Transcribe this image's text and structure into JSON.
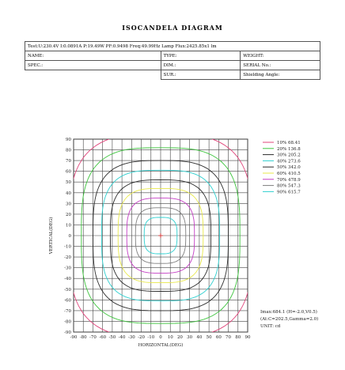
{
  "title": "ISOCANDELA DIAGRAM",
  "info_table": {
    "test_line": "Test:U:230.4V I:0.0891A P:19.49W PF:0.9498 Freq:49.99Hz  Lamp Flux:2425.85x1 lm",
    "name_label": "NAME:",
    "type_label": "TYPE:",
    "weight_label": "WEIGHT:",
    "spec_label": "SPEC.:",
    "dim_label": "DIM.:",
    "serial_label": "SERIAL No.:",
    "sur_label": "SUR.:",
    "shielding_label": "Shielding Angle:"
  },
  "chart_data": {
    "type": "isocandela",
    "xlabel": "HORIZONTAL(DEG)",
    "ylabel": "VERTICAL(DEG)",
    "xlim": [
      -90,
      90
    ],
    "ylim": [
      -90,
      90
    ],
    "x_ticks": [
      -90,
      -80,
      -70,
      -60,
      -50,
      -40,
      -30,
      -20,
      -10,
      0,
      10,
      20,
      30,
      40,
      50,
      60,
      70,
      80,
      90
    ],
    "y_ticks": [
      90,
      80,
      70,
      60,
      50,
      40,
      30,
      20,
      10,
      0,
      -10,
      -20,
      -30,
      -40,
      -50,
      -60,
      -70,
      -80,
      -90
    ],
    "grid": true,
    "legend_position": "right",
    "series": [
      {
        "name": "10% 68.41",
        "percent": 10,
        "value": 68.41,
        "color": "#e0457b",
        "half_width": 95
      },
      {
        "name": "20% 136.8",
        "percent": 20,
        "value": 136.8,
        "color": "#3ec43e",
        "half_width": 82
      },
      {
        "name": "30% 205.2",
        "percent": 30,
        "value": 205.2,
        "color": "#2a2a2a",
        "half_width": 70
      },
      {
        "name": "40% 273.6",
        "percent": 40,
        "value": 273.6,
        "color": "#2fd0d0",
        "half_width": 61
      },
      {
        "name": "50% 342.0",
        "percent": 50,
        "value": 342.0,
        "color": "#2a2a2a",
        "half_width": 52
      },
      {
        "name": "60% 410.5",
        "percent": 60,
        "value": 410.5,
        "color": "#e8e84a",
        "half_width": 44
      },
      {
        "name": "70% 478.9",
        "percent": 70,
        "value": 478.9,
        "color": "#c43ec4",
        "half_width": 35
      },
      {
        "name": "80% 547.3",
        "percent": 80,
        "value": 547.3,
        "color": "#7e7e7e",
        "half_width": 26
      },
      {
        "name": "90% 615.7",
        "percent": 90,
        "value": 615.7,
        "color": "#2fd0d0",
        "half_width": 17
      }
    ],
    "max_marker": {
      "x": 0,
      "y": 0,
      "color": "#e03030"
    },
    "annotations": [
      "Imax:684.1 (H=-2.0,V0.5)",
      "(At:C=202.5,Gamma=2.0)",
      "UNIT: cd"
    ]
  }
}
